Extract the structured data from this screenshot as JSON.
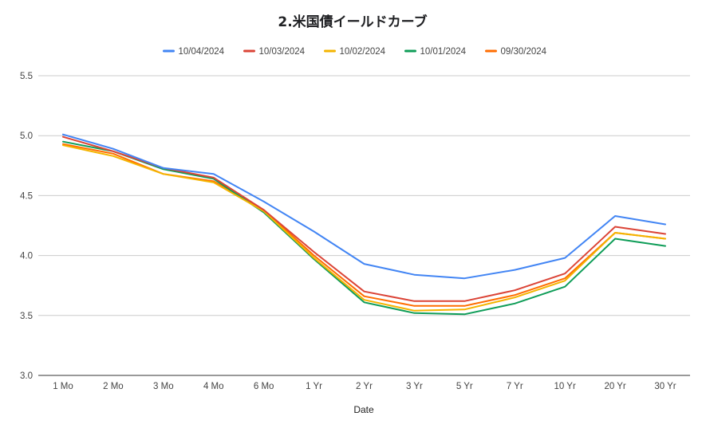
{
  "chart_data": {
    "type": "line",
    "title": "2.米国債イールドカーブ",
    "xlabel": "Date",
    "ylabel": "",
    "categories": [
      "1 Mo",
      "2 Mo",
      "3 Mo",
      "4 Mo",
      "6 Mo",
      "1 Yr",
      "2 Yr",
      "3 Yr",
      "5 Yr",
      "7 Yr",
      "10 Yr",
      "20 Yr",
      "30 Yr"
    ],
    "ylim": [
      3.0,
      5.5
    ],
    "yticks": [
      "3.0",
      "3.5",
      "4.0",
      "4.5",
      "5.0",
      "5.5"
    ],
    "grid": true,
    "legend_position": "top",
    "series": [
      {
        "name": "10/04/2024",
        "color": "#4285f4",
        "values": [
          5.01,
          4.89,
          4.73,
          4.68,
          4.45,
          4.2,
          3.93,
          3.84,
          3.81,
          3.88,
          3.98,
          4.33,
          4.26
        ]
      },
      {
        "name": "10/03/2024",
        "color": "#db4437",
        "values": [
          4.99,
          4.87,
          4.73,
          4.65,
          4.38,
          4.03,
          3.7,
          3.62,
          3.62,
          3.71,
          3.85,
          4.24,
          4.18
        ]
      },
      {
        "name": "10/02/2024",
        "color": "#f4b400",
        "values": [
          4.92,
          4.83,
          4.68,
          4.61,
          4.37,
          3.98,
          3.63,
          3.54,
          3.55,
          3.65,
          3.79,
          4.19,
          4.14
        ]
      },
      {
        "name": "10/01/2024",
        "color": "#0f9d58",
        "values": [
          4.95,
          4.87,
          4.72,
          4.64,
          4.36,
          3.97,
          3.61,
          3.52,
          3.51,
          3.6,
          3.74,
          4.14,
          4.08
        ]
      },
      {
        "name": "09/30/2024",
        "color": "#ff6d01",
        "values": [
          4.93,
          4.85,
          4.68,
          4.62,
          4.38,
          4.0,
          3.66,
          3.58,
          3.58,
          3.67,
          3.81,
          4.19,
          4.14
        ]
      }
    ]
  }
}
